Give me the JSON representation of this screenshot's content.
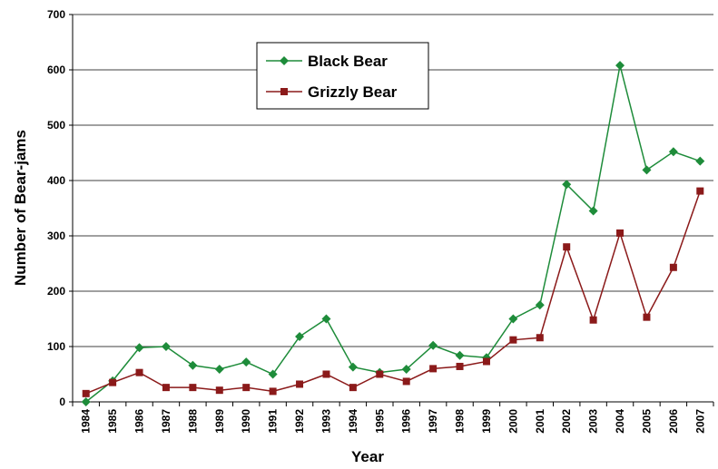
{
  "chart_data": {
    "type": "line",
    "x_label": "Year",
    "y_label": "Number of Bear-jams",
    "categories": [
      "1984",
      "1985",
      "1986",
      "1987",
      "1988",
      "1989",
      "1990",
      "1991",
      "1992",
      "1993",
      "1994",
      "1995",
      "1996",
      "1997",
      "1998",
      "1999",
      "2000",
      "2001",
      "2002",
      "2003",
      "2004",
      "2005",
      "2006",
      "2007"
    ],
    "series": [
      {
        "name": "Black Bear",
        "color": "#1e8c3a",
        "marker": "diamond",
        "values": [
          0,
          38,
          98,
          100,
          66,
          59,
          72,
          50,
          118,
          150,
          63,
          53,
          59,
          102,
          84,
          80,
          150,
          175,
          393,
          345,
          608,
          419,
          452,
          435
        ]
      },
      {
        "name": "Grizzly Bear",
        "color": "#8b1a1a",
        "marker": "square",
        "values": [
          15,
          35,
          53,
          26,
          26,
          21,
          26,
          19,
          32,
          50,
          26,
          50,
          37,
          60,
          64,
          73,
          112,
          116,
          280,
          148,
          305,
          153,
          243,
          381
        ]
      }
    ],
    "ylim": [
      0,
      700
    ],
    "yticks": [
      0,
      100,
      200,
      300,
      400,
      500,
      600,
      700
    ],
    "grid": true,
    "legend": "top"
  }
}
